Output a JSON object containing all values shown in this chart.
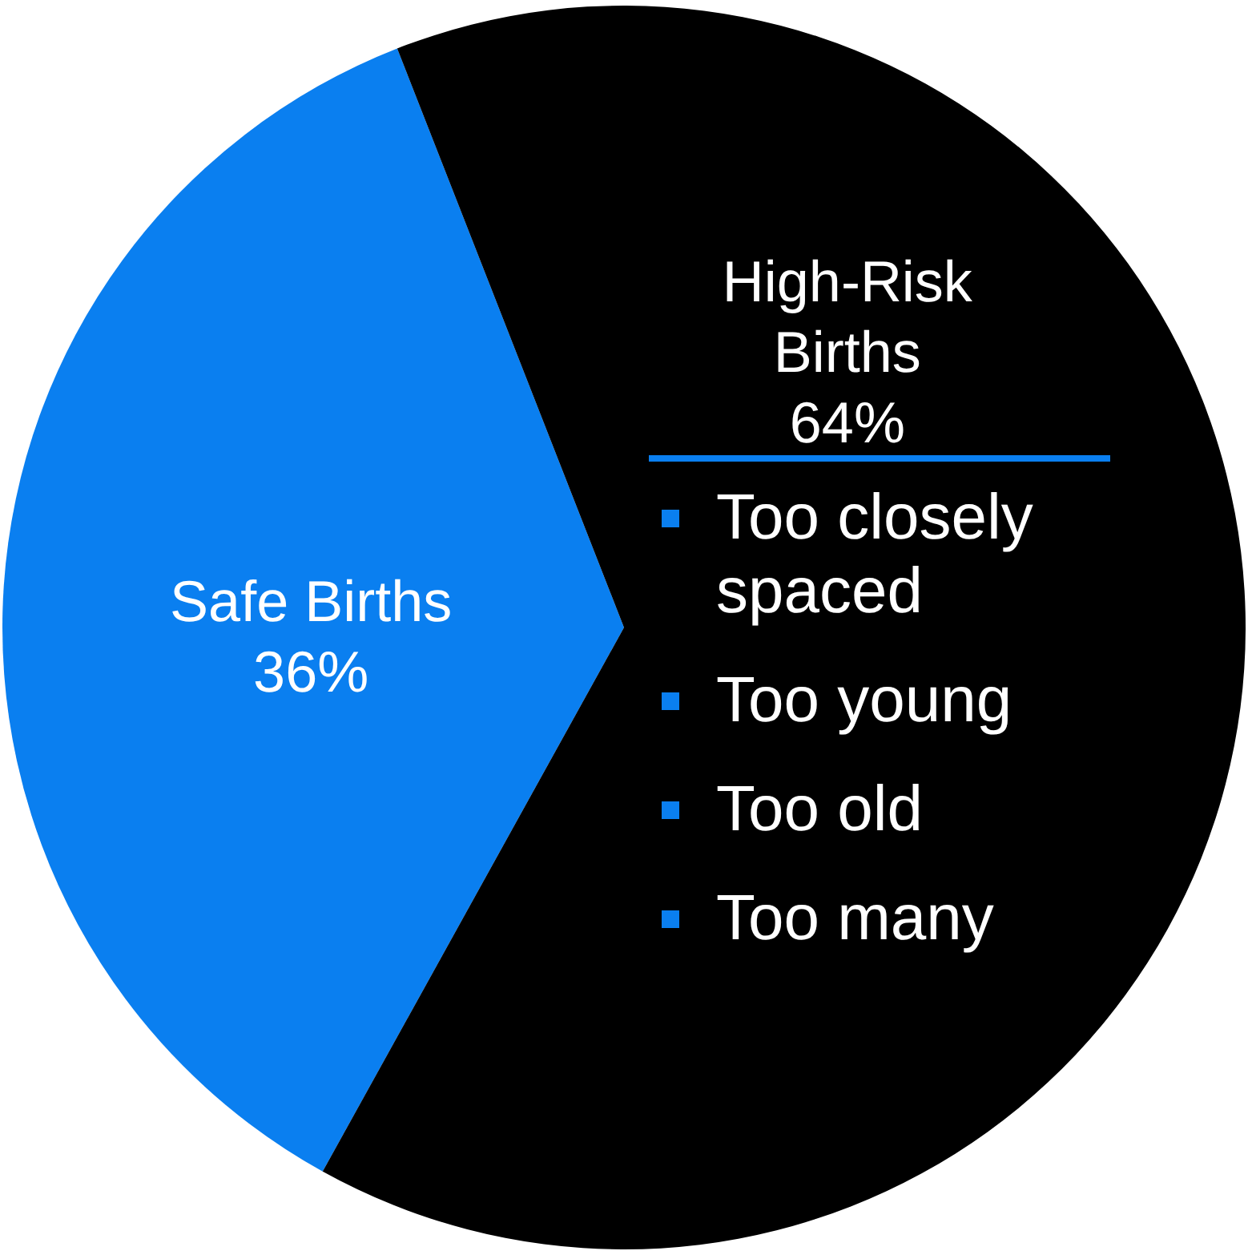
{
  "chart_data": {
    "type": "pie",
    "categories": [
      "Safe Births",
      "High-Risk Births"
    ],
    "values": [
      36,
      64
    ],
    "colors": [
      "#0a7ff0",
      "#000000"
    ],
    "value_labels": [
      "36%",
      "64%"
    ],
    "annotations": [
      "Too closely spaced",
      "Too young",
      "Too old",
      "Too many"
    ]
  }
}
